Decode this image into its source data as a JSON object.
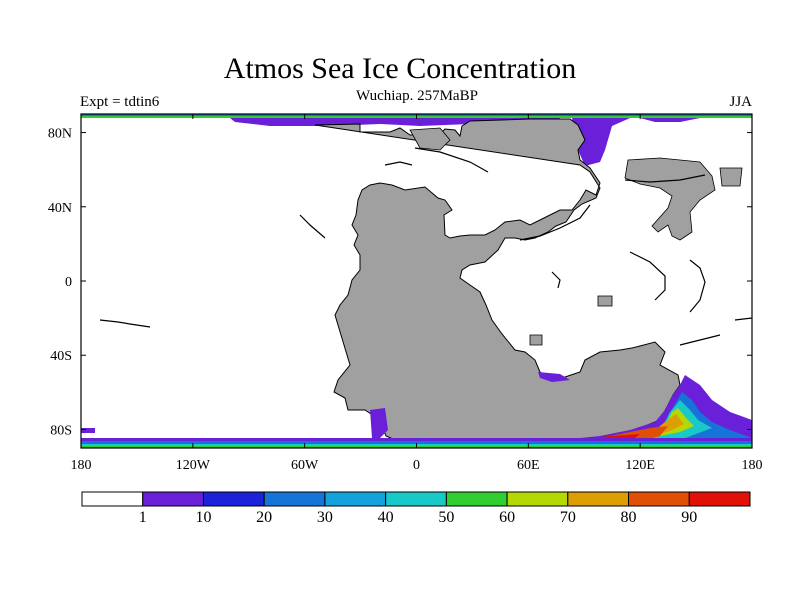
{
  "title": "Atmos Sea Ice Concentration",
  "subtitle": "Wuchiap. 257MaBP",
  "left_label": "Expt = tdtin6",
  "right_label": "JJA",
  "map": {
    "x_ticks": [
      {
        "lon": -180,
        "label": "180"
      },
      {
        "lon": -120,
        "label": "120W"
      },
      {
        "lon": -60,
        "label": "60W"
      },
      {
        "lon": 0,
        "label": "0"
      },
      {
        "lon": 60,
        "label": "60E"
      },
      {
        "lon": 120,
        "label": "120E"
      },
      {
        "lon": 180,
        "label": "180"
      }
    ],
    "y_ticks": [
      {
        "lat": 80,
        "label": "80N"
      },
      {
        "lat": 40,
        "label": "40N"
      },
      {
        "lat": 0,
        "label": "0"
      },
      {
        "lat": -40,
        "label": "40S"
      },
      {
        "lat": -80,
        "label": "80S"
      }
    ],
    "land_color": "#a0a0a0",
    "ocean_color": "#ffffff"
  },
  "colorbar": {
    "colors": [
      "#ffffff",
      "#6a1fd8",
      "#1b22d9",
      "#1673d8",
      "#13a2dc",
      "#19c9c7",
      "#31cc31",
      "#b4d804",
      "#dc9e02",
      "#e04f06",
      "#e01207"
    ],
    "labels": [
      "1",
      "10",
      "20",
      "30",
      "40",
      "50",
      "60",
      "70",
      "80",
      "90"
    ]
  }
}
